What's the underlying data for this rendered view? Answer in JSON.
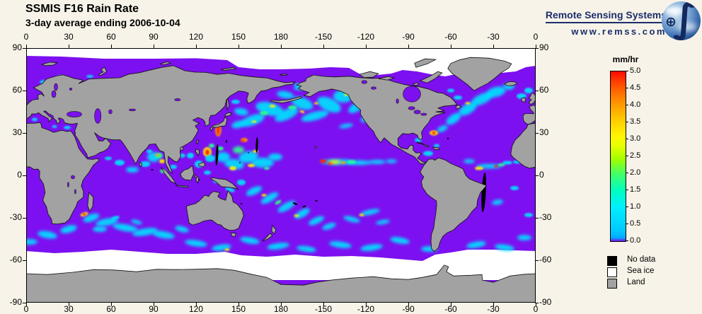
{
  "header": {
    "title": "SSMIS F16 Rain Rate",
    "subtitle": "3-day average ending 2006-10-04"
  },
  "branding": {
    "name": "Remote Sensing Systems",
    "url": "www.remss.com",
    "logo_icon": "earth-globe-integral-icon"
  },
  "chart_data": {
    "type": "heatmap",
    "title": "SSMIS F16 Rain Rate",
    "subtitle": "3-day average ending 2006-10-04",
    "units": "mm/hr",
    "projection": "equirectangular",
    "grid": false,
    "lon_axis": {
      "range_deg": [
        0,
        360
      ],
      "tick_step_deg": 30,
      "labels": [
        "0",
        "30",
        "60",
        "90",
        "120",
        "150",
        "180",
        "-150",
        "-120",
        "-90",
        "-60",
        "-30",
        "0"
      ]
    },
    "lat_axis": {
      "range_deg": [
        90,
        -90
      ],
      "tick_step_deg": 30,
      "labels": [
        "90",
        "60",
        "30",
        "0",
        "-30",
        "-60",
        "-90"
      ]
    },
    "colorbar": {
      "title": "mm/hr",
      "min": 0.0,
      "max": 5.0,
      "position": "right",
      "tick_labels_top_to_bottom": [
        "5.0",
        "4.5",
        "4.0",
        "3.5",
        "3.0",
        "2.5",
        "2.0",
        "1.5",
        "1.0",
        "0.5",
        "0.0"
      ],
      "stops_bottom_to_top": [
        [
          0.0,
          "#7C10F0"
        ],
        [
          0.02,
          "#00AAFF"
        ],
        [
          0.06,
          "#00C8FF"
        ],
        [
          0.2,
          "#00F0FF"
        ],
        [
          0.3,
          "#00FFBE"
        ],
        [
          0.4,
          "#46FF64"
        ],
        [
          0.48,
          "#A0FF00"
        ],
        [
          0.56,
          "#E6FF00"
        ],
        [
          0.62,
          "#FFF500"
        ],
        [
          0.7,
          "#FFD200"
        ],
        [
          0.78,
          "#FFA800"
        ],
        [
          0.86,
          "#FF7800"
        ],
        [
          0.93,
          "#FF4600"
        ],
        [
          1.0,
          "#FF0A00"
        ]
      ]
    },
    "legend": [
      {
        "label": "No data",
        "color": "#000000"
      },
      {
        "label": "Sea ice",
        "color": "#FFFFFF"
      },
      {
        "label": "Land",
        "color": "#A2A2A2"
      }
    ],
    "ocean_color": "#7C10F0",
    "palette": {
      "c": "#00E1FF",
      "g": "#2BFF8E",
      "y": "#FFF200",
      "o": "#FF9D00",
      "r": "#FF2000"
    },
    "rain_cells": [
      [
        150,
        36,
        5,
        2.5,
        -15,
        "c"
      ],
      [
        160,
        39,
        9,
        3.5,
        -20,
        "c"
      ],
      [
        172,
        47,
        10,
        4.5,
        15,
        "c"
      ],
      [
        184,
        43,
        9,
        3.5,
        -25,
        "c"
      ],
      [
        195,
        51,
        8,
        4,
        20,
        "c"
      ],
      [
        204,
        42,
        10,
        3,
        -15,
        "c"
      ],
      [
        214,
        50,
        9,
        4.5,
        25,
        "c"
      ],
      [
        224,
        56,
        7,
        4.5,
        0,
        "c"
      ],
      [
        233,
        48,
        6,
        3,
        -30,
        "c"
      ],
      [
        152,
        45,
        5,
        2.5,
        10,
        "c"
      ],
      [
        183,
        57,
        6,
        2.5,
        10,
        "c"
      ],
      [
        193,
        62,
        4,
        1.8,
        0,
        "c"
      ],
      [
        240,
        40,
        4,
        2,
        -20,
        "c"
      ],
      [
        226,
        35,
        5,
        1.5,
        -10,
        "c"
      ],
      [
        174,
        49,
        2.2,
        1,
        0,
        "y"
      ],
      [
        195,
        45,
        1.8,
        0.9,
        20,
        "y"
      ],
      [
        161,
        38,
        1.8,
        0.8,
        0,
        "y"
      ],
      [
        205,
        51,
        1.5,
        0.8,
        0,
        "y"
      ],
      [
        168,
        44,
        3,
        1.5,
        0,
        "g"
      ],
      [
        188,
        48,
        3,
        1.5,
        0,
        "g"
      ],
      [
        139,
        13,
        5,
        3.5,
        0,
        "c"
      ],
      [
        147,
        8,
        7,
        3.5,
        10,
        "c"
      ],
      [
        157,
        13,
        7,
        4,
        -10,
        "c"
      ],
      [
        167,
        9,
        8,
        3.5,
        0,
        "c"
      ],
      [
        176,
        13,
        5,
        2.5,
        0,
        "c"
      ],
      [
        150,
        18,
        4,
        2.5,
        0,
        "g"
      ],
      [
        146,
        5,
        2.5,
        1.5,
        0,
        "y"
      ],
      [
        159,
        7,
        2.5,
        1.2,
        0,
        "y"
      ],
      [
        154,
        25,
        2.5,
        1.5,
        0,
        "o"
      ],
      [
        153,
        24.5,
        1,
        0.8,
        0,
        "r"
      ],
      [
        137,
        19,
        2.5,
        1.5,
        0,
        "g"
      ],
      [
        162,
        17,
        2,
        1,
        0,
        "y"
      ],
      [
        170,
        5,
        2,
        1,
        0,
        "g"
      ],
      [
        135.7,
        32,
        2.2,
        4.5,
        0,
        "o"
      ],
      [
        135.7,
        32,
        1,
        3.5,
        0,
        "r"
      ],
      [
        128,
        16.5,
        3,
        3.5,
        0,
        "y"
      ],
      [
        128,
        16.3,
        1.5,
        2,
        0,
        "r"
      ],
      [
        131,
        21,
        2,
        1.5,
        0,
        "g"
      ],
      [
        130,
        12,
        3.5,
        2.5,
        0,
        "c"
      ],
      [
        122,
        8,
        3,
        2.5,
        0,
        "c"
      ],
      [
        116,
        14,
        2.5,
        2,
        0,
        "c"
      ],
      [
        110,
        14,
        2.5,
        1.5,
        0,
        "c"
      ],
      [
        135,
        -4,
        3,
        1.5,
        0,
        "c"
      ],
      [
        128,
        2,
        2.5,
        1.5,
        0,
        "c"
      ],
      [
        144,
        -10,
        3.5,
        1.5,
        20,
        "c"
      ],
      [
        152,
        -5,
        3,
        2,
        0,
        "c"
      ],
      [
        90,
        13,
        4.5,
        3.5,
        0,
        "c"
      ],
      [
        94,
        14,
        2.5,
        2,
        0,
        "g"
      ],
      [
        92.5,
        14.5,
        1.3,
        1,
        0,
        "o"
      ],
      [
        96,
        10,
        2,
        1.5,
        0,
        "y"
      ],
      [
        87,
        17,
        2,
        1.3,
        0,
        "c"
      ],
      [
        84,
        8,
        3.5,
        2,
        0,
        "c"
      ],
      [
        75,
        4,
        4.5,
        2,
        0,
        "c"
      ],
      [
        66,
        9,
        3.5,
        2,
        0,
        "c"
      ],
      [
        97,
        3,
        2.5,
        1.5,
        0,
        "g"
      ],
      [
        104,
        6,
        2.5,
        1.5,
        0,
        "c"
      ],
      [
        58,
        12,
        2.5,
        1.2,
        0,
        "c"
      ],
      [
        46,
        -30,
        6,
        2.5,
        -20,
        "c"
      ],
      [
        57,
        -33,
        8,
        2.5,
        -10,
        "c"
      ],
      [
        70,
        -37,
        9,
        2.5,
        10,
        "c"
      ],
      [
        84,
        -40,
        9,
        2.5,
        -10,
        "c"
      ],
      [
        97,
        -42,
        8,
        2.5,
        10,
        "c"
      ],
      [
        41,
        -27.5,
        2.8,
        1.3,
        -20,
        "y"
      ],
      [
        41,
        -27.5,
        1.2,
        0.8,
        0,
        "r"
      ],
      [
        63,
        -30,
        3,
        1.2,
        -15,
        "c"
      ],
      [
        78,
        -33,
        4,
        1.5,
        15,
        "c"
      ],
      [
        52,
        -38,
        5,
        2,
        0,
        "c"
      ],
      [
        30,
        -38,
        6,
        2.5,
        -15,
        "c"
      ],
      [
        15,
        -42,
        7,
        2.5,
        10,
        "c"
      ],
      [
        2,
        -47,
        6,
        2,
        0,
        "c"
      ],
      [
        110,
        -38,
        5,
        2,
        15,
        "c"
      ],
      [
        161,
        -11,
        6,
        2.5,
        -25,
        "c"
      ],
      [
        172,
        -16,
        7,
        2.5,
        -30,
        "c"
      ],
      [
        184,
        -22,
        7,
        2.5,
        -30,
        "c"
      ],
      [
        195,
        -27,
        6,
        2.5,
        -30,
        "c"
      ],
      [
        205,
        -32,
        6,
        2.2,
        -25,
        "c"
      ],
      [
        191,
        -28.5,
        1.8,
        0.9,
        0,
        "y"
      ],
      [
        168,
        -14,
        1.8,
        0.9,
        0,
        "y"
      ],
      [
        178,
        -19,
        2.5,
        1.2,
        -30,
        "g"
      ],
      [
        214,
        -36,
        5,
        2,
        -20,
        "c"
      ],
      [
        120,
        -48,
        8,
        2.2,
        8,
        "c"
      ],
      [
        138,
        -51,
        7,
        2.2,
        -8,
        "c"
      ],
      [
        142,
        -52.5,
        1.8,
        0.9,
        0,
        "y"
      ],
      [
        158,
        -46,
        7,
        2.2,
        10,
        "c"
      ],
      [
        178,
        -50,
        8,
        2.2,
        -8,
        "c"
      ],
      [
        198,
        -52,
        7,
        2,
        8,
        "c"
      ],
      [
        222,
        -49,
        8,
        2.2,
        8,
        "c"
      ],
      [
        244,
        -51,
        8,
        2.2,
        -8,
        "c"
      ],
      [
        264,
        -46,
        7,
        2.2,
        10,
        "c"
      ],
      [
        285,
        -52,
        6,
        2,
        0,
        "c"
      ],
      [
        318,
        -49,
        7,
        2.2,
        -10,
        "c"
      ],
      [
        338,
        -51,
        7,
        2.2,
        8,
        "c"
      ],
      [
        352,
        -44,
        5,
        2,
        0,
        "c"
      ],
      [
        220,
        9.5,
        12,
        2,
        0,
        "c"
      ],
      [
        235,
        9,
        9,
        1.7,
        0,
        "c"
      ],
      [
        248,
        9.5,
        6,
        1.5,
        0,
        "c"
      ],
      [
        210,
        10,
        2.5,
        1.3,
        0,
        "r"
      ],
      [
        215,
        8.5,
        2,
        1.1,
        0,
        "r"
      ],
      [
        224,
        9,
        1.8,
        1,
        0,
        "o"
      ],
      [
        218,
        9.5,
        4,
        1.3,
        0,
        "y"
      ],
      [
        230,
        9.5,
        3,
        1.2,
        0,
        "g"
      ],
      [
        258,
        10,
        4,
        1.3,
        0,
        "c"
      ],
      [
        243,
        -26,
        7,
        1.8,
        -12,
        "c"
      ],
      [
        230,
        -31,
        6,
        1.8,
        15,
        "c"
      ],
      [
        237,
        -28,
        1.8,
        0.9,
        0,
        "y"
      ],
      [
        252,
        -33,
        5,
        1.5,
        -10,
        "c"
      ],
      [
        294,
        33,
        4,
        2,
        -25,
        "c"
      ],
      [
        288,
        30,
        3,
        1.8,
        0,
        "y"
      ],
      [
        288,
        30,
        1.4,
        1,
        0,
        "r"
      ],
      [
        302,
        40,
        6,
        3,
        -35,
        "c"
      ],
      [
        312,
        47,
        7,
        3.5,
        -30,
        "c"
      ],
      [
        322,
        54,
        8,
        3.5,
        -25,
        "c"
      ],
      [
        332,
        59,
        7,
        3.5,
        -15,
        "c"
      ],
      [
        312,
        51,
        1.8,
        0.9,
        0,
        "y"
      ],
      [
        341,
        63,
        4,
        2.5,
        0,
        "c"
      ],
      [
        350,
        56,
        3.5,
        2,
        0,
        "c"
      ],
      [
        355,
        60,
        3,
        2,
        0,
        "c"
      ],
      [
        305,
        55,
        3,
        1.5,
        0,
        "c"
      ],
      [
        327,
        6.5,
        9,
        1.7,
        0,
        "c"
      ],
      [
        336,
        7.5,
        2.5,
        1.1,
        0,
        "g"
      ],
      [
        332,
        6.5,
        1.3,
        0.9,
        0,
        "r"
      ],
      [
        340,
        9,
        3.5,
        1.3,
        0,
        "c"
      ],
      [
        347,
        9.5,
        3,
        1.2,
        0,
        "c"
      ],
      [
        320,
        5,
        3,
        1.2,
        0,
        "y"
      ],
      [
        313,
        10,
        4,
        1.5,
        0,
        "c"
      ],
      [
        284,
        15.5,
        3.5,
        1.8,
        0,
        "c"
      ],
      [
        277,
        25,
        2.5,
        1.5,
        0,
        "c"
      ],
      [
        290,
        21,
        2,
        1.2,
        0,
        "c"
      ],
      [
        333,
        -19,
        4,
        1.8,
        -10,
        "c"
      ],
      [
        345,
        -9,
        3,
        1.5,
        0,
        "c"
      ],
      [
        355,
        -28,
        3,
        1.5,
        0,
        "c"
      ],
      [
        6,
        39.5,
        2,
        1.2,
        0,
        "c"
      ],
      [
        29,
        33.8,
        2.5,
        1.2,
        0,
        "c"
      ],
      [
        20,
        34.5,
        1.8,
        1,
        0,
        "c"
      ],
      [
        12,
        66,
        2.5,
        1.3,
        0,
        "c"
      ],
      [
        24,
        70,
        2,
        1,
        0,
        "c"
      ],
      [
        45,
        70,
        2.5,
        1,
        0,
        "c"
      ],
      [
        192,
        64,
        2.5,
        1.2,
        0,
        "c"
      ],
      [
        200,
        68,
        2,
        1,
        0,
        "c"
      ],
      [
        148,
        52,
        3,
        1.5,
        0,
        "c"
      ],
      [
        272,
        57,
        2,
        1.3,
        0,
        "c"
      ],
      [
        300,
        60,
        2.5,
        1.3,
        0,
        "c"
      ],
      [
        226,
        57,
        1.5,
        0.8,
        0,
        "y"
      ]
    ],
    "no_data_swaths": [
      [
        134.8,
        14.5,
        0.9,
        7.5,
        3
      ],
      [
        163,
        21.5,
        0.8,
        5.5,
        2
      ],
      [
        323.3,
        -12,
        1.5,
        14,
        3
      ],
      [
        121.8,
        -3,
        0.9,
        0.5,
        20
      ],
      [
        190,
        -20,
        1.8,
        0.6,
        25
      ],
      [
        196.5,
        -22,
        1.4,
        0.5,
        -20
      ],
      [
        141.5,
        24,
        0.5,
        1,
        0
      ],
      [
        89,
        4,
        0.8,
        0.5,
        0
      ],
      [
        298,
        26,
        0.6,
        0.6,
        0
      ],
      [
        205,
        -18,
        1,
        0.4,
        15
      ],
      [
        152,
        -20,
        0.8,
        0.4,
        0
      ],
      [
        282,
        8.5,
        0.4,
        1.2,
        0
      ],
      [
        151,
        9,
        0.6,
        0.4,
        0
      ],
      [
        157,
        16,
        0.5,
        0.4,
        0
      ]
    ],
    "sea_ice_edges": {
      "north": [
        [
          0,
          84.5
        ],
        [
          25,
          84
        ],
        [
          55,
          82.5
        ],
        [
          90,
          82.5
        ],
        [
          120,
          82.8
        ],
        [
          142,
          81.5
        ],
        [
          150,
          76.5
        ],
        [
          165,
          75
        ],
        [
          180,
          75
        ],
        [
          200,
          75.5
        ],
        [
          215,
          76.5
        ],
        [
          228,
          76
        ],
        [
          236,
          71.5
        ],
        [
          248,
          71
        ],
        [
          258,
          72
        ],
        [
          266,
          74.5
        ],
        [
          276,
          73.5
        ],
        [
          286,
          71.5
        ],
        [
          296,
          70
        ],
        [
          306,
          72
        ],
        [
          316,
          74
        ],
        [
          326,
          73
        ],
        [
          336,
          72.5
        ],
        [
          346,
          73.5
        ],
        [
          353,
          76.5
        ],
        [
          360,
          77.5
        ]
      ],
      "south": [
        [
          0,
          -53.5
        ],
        [
          20,
          -55
        ],
        [
          40,
          -54
        ],
        [
          60,
          -52.5
        ],
        [
          80,
          -54
        ],
        [
          100,
          -55.5
        ],
        [
          120,
          -55.5
        ],
        [
          140,
          -54
        ],
        [
          152,
          -56.5
        ],
        [
          170,
          -57.5
        ],
        [
          190,
          -56
        ],
        [
          210,
          -57.5
        ],
        [
          230,
          -57
        ],
        [
          250,
          -58
        ],
        [
          268,
          -59.5
        ],
        [
          280,
          -60.5
        ],
        [
          289,
          -56
        ],
        [
          300,
          -54.5
        ],
        [
          312,
          -52.5
        ],
        [
          330,
          -52.5
        ],
        [
          345,
          -53
        ],
        [
          360,
          -53.5
        ]
      ]
    }
  }
}
